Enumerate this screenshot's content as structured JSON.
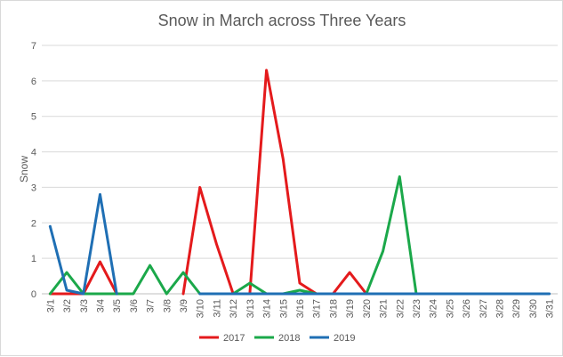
{
  "chart_data": {
    "type": "line",
    "title": "Snow in March across Three Years",
    "xlabel": "",
    "ylabel": "Snow",
    "ylim": [
      0,
      7
    ],
    "yticks": [
      0,
      1,
      2,
      3,
      4,
      5,
      6,
      7
    ],
    "grid": true,
    "legend_position": "bottom",
    "categories": [
      "3/1",
      "3/2",
      "3/3",
      "3/4",
      "3/5",
      "3/6",
      "3/7",
      "3/8",
      "3/9",
      "3/10",
      "3/11",
      "3/12",
      "3/13",
      "3/14",
      "3/15",
      "3/16",
      "3/17",
      "3/18",
      "3/19",
      "3/20",
      "3/21",
      "3/22",
      "3/23",
      "3/24",
      "3/25",
      "3/26",
      "3/27",
      "3/28",
      "3/29",
      "3/30",
      "3/31"
    ],
    "series": [
      {
        "name": "2017",
        "color": "#e41a1c",
        "values": [
          0,
          0,
          0,
          0.9,
          0,
          null,
          null,
          null,
          0,
          3,
          1.4,
          0,
          0,
          6.3,
          3.8,
          0.3,
          0,
          0,
          0.6,
          0,
          null,
          null,
          null,
          null,
          null,
          null,
          null,
          null,
          null,
          null,
          null
        ]
      },
      {
        "name": "2018",
        "color": "#1ba84a",
        "values": [
          0,
          0.6,
          0,
          0,
          0,
          0,
          0.8,
          0,
          0.6,
          0,
          0,
          0,
          0.3,
          0,
          0,
          0.1,
          0,
          null,
          null,
          0,
          1.2,
          3.3,
          0,
          null,
          null,
          null,
          null,
          null,
          null,
          null,
          null
        ]
      },
      {
        "name": "2019",
        "color": "#1f6fb4",
        "values": [
          1.9,
          0.1,
          0,
          2.8,
          0,
          null,
          null,
          null,
          null,
          0,
          0,
          0,
          0,
          0,
          0,
          0,
          0,
          0,
          0,
          0,
          0,
          0,
          0,
          0,
          0,
          0,
          0,
          0,
          0,
          0,
          0
        ]
      }
    ]
  }
}
